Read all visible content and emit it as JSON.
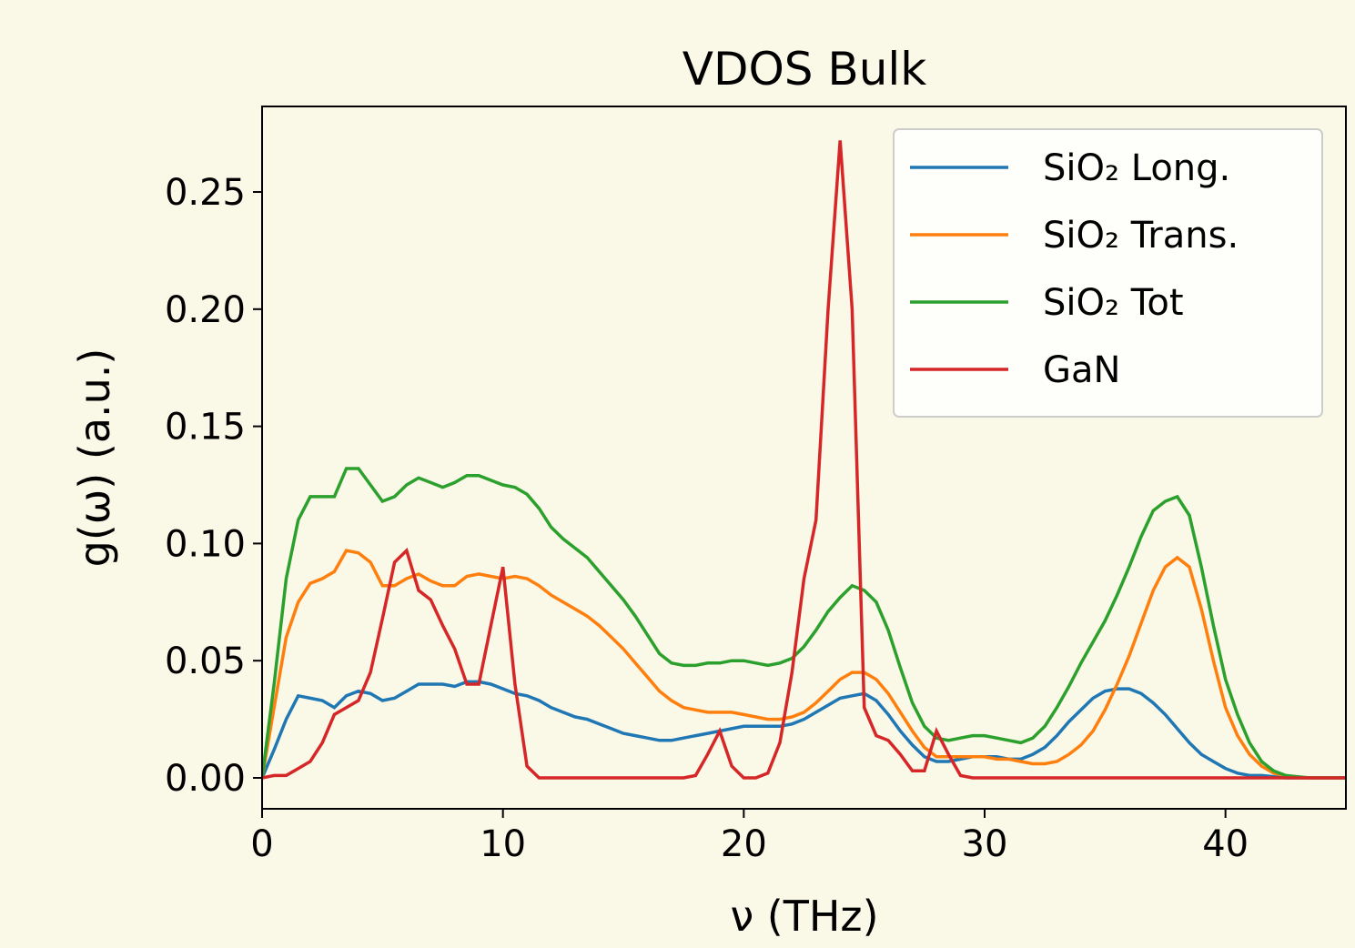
{
  "chart_data": {
    "type": "line",
    "title": "VDOS Bulk",
    "xlabel": "ν (THz)",
    "ylabel": "g(ω) (a.u.)",
    "x": [
      0,
      0.5,
      1,
      1.5,
      2,
      2.5,
      3,
      3.5,
      4,
      4.5,
      5,
      5.5,
      6,
      6.5,
      7,
      7.5,
      8,
      8.5,
      9,
      9.5,
      10,
      10.5,
      11,
      11.5,
      12,
      12.5,
      13,
      13.5,
      14,
      14.5,
      15,
      15.5,
      16,
      16.5,
      17,
      17.5,
      18,
      18.5,
      19,
      19.5,
      20,
      20.5,
      21,
      21.5,
      22,
      22.5,
      23,
      23.5,
      24,
      24.5,
      25,
      25.5,
      26,
      26.5,
      27,
      27.5,
      28,
      28.5,
      29,
      29.5,
      30,
      30.5,
      31,
      31.5,
      32,
      32.5,
      33,
      33.5,
      34,
      34.5,
      35,
      35.5,
      36,
      36.5,
      37,
      37.5,
      38,
      38.5,
      39,
      39.5,
      40,
      40.5,
      41,
      41.5,
      42,
      42.5,
      43,
      43.5,
      44,
      44.5,
      45
    ],
    "series": [
      {
        "name": "SiO₂ Long.",
        "color": "#1f77b4",
        "values": [
          0,
          0.012,
          0.025,
          0.035,
          0.034,
          0.033,
          0.03,
          0.035,
          0.037,
          0.036,
          0.033,
          0.034,
          0.037,
          0.04,
          0.04,
          0.04,
          0.039,
          0.041,
          0.041,
          0.04,
          0.038,
          0.036,
          0.035,
          0.033,
          0.03,
          0.028,
          0.026,
          0.025,
          0.023,
          0.021,
          0.019,
          0.018,
          0.017,
          0.016,
          0.016,
          0.017,
          0.018,
          0.019,
          0.02,
          0.021,
          0.022,
          0.022,
          0.022,
          0.022,
          0.023,
          0.025,
          0.028,
          0.031,
          0.034,
          0.035,
          0.036,
          0.033,
          0.027,
          0.02,
          0.014,
          0.009,
          0.007,
          0.007,
          0.008,
          0.009,
          0.009,
          0.009,
          0.008,
          0.008,
          0.01,
          0.013,
          0.018,
          0.024,
          0.029,
          0.034,
          0.037,
          0.038,
          0.038,
          0.036,
          0.032,
          0.027,
          0.021,
          0.015,
          0.01,
          0.007,
          0.004,
          0.002,
          0.001,
          0.001,
          0.0005,
          0,
          0,
          0,
          0,
          0,
          0
        ]
      },
      {
        "name": "SiO₂ Trans.",
        "color": "#ff7f0e",
        "values": [
          0,
          0.03,
          0.06,
          0.075,
          0.083,
          0.085,
          0.088,
          0.097,
          0.096,
          0.092,
          0.082,
          0.082,
          0.085,
          0.087,
          0.084,
          0.082,
          0.082,
          0.086,
          0.087,
          0.086,
          0.085,
          0.086,
          0.085,
          0.082,
          0.078,
          0.075,
          0.072,
          0.069,
          0.065,
          0.06,
          0.055,
          0.049,
          0.043,
          0.037,
          0.033,
          0.03,
          0.029,
          0.028,
          0.028,
          0.028,
          0.027,
          0.026,
          0.025,
          0.025,
          0.026,
          0.028,
          0.032,
          0.037,
          0.042,
          0.045,
          0.045,
          0.042,
          0.036,
          0.028,
          0.02,
          0.013,
          0.009,
          0.009,
          0.009,
          0.009,
          0.009,
          0.008,
          0.008,
          0.007,
          0.006,
          0.006,
          0.007,
          0.01,
          0.014,
          0.02,
          0.029,
          0.04,
          0.052,
          0.066,
          0.08,
          0.09,
          0.094,
          0.09,
          0.072,
          0.05,
          0.03,
          0.018,
          0.01,
          0.005,
          0.002,
          0.001,
          0,
          0,
          0,
          0,
          0
        ]
      },
      {
        "name": "SiO₂ Tot",
        "color": "#2ca02c",
        "values": [
          0,
          0.04,
          0.085,
          0.11,
          0.12,
          0.12,
          0.12,
          0.132,
          0.132,
          0.125,
          0.118,
          0.12,
          0.125,
          0.128,
          0.126,
          0.124,
          0.126,
          0.129,
          0.129,
          0.127,
          0.125,
          0.124,
          0.121,
          0.115,
          0.107,
          0.102,
          0.098,
          0.094,
          0.088,
          0.082,
          0.076,
          0.069,
          0.061,
          0.053,
          0.049,
          0.048,
          0.048,
          0.049,
          0.049,
          0.05,
          0.05,
          0.049,
          0.048,
          0.049,
          0.051,
          0.056,
          0.063,
          0.071,
          0.077,
          0.082,
          0.08,
          0.075,
          0.063,
          0.047,
          0.032,
          0.022,
          0.017,
          0.016,
          0.017,
          0.018,
          0.018,
          0.017,
          0.016,
          0.015,
          0.017,
          0.022,
          0.03,
          0.039,
          0.049,
          0.058,
          0.067,
          0.078,
          0.09,
          0.103,
          0.114,
          0.118,
          0.12,
          0.112,
          0.09,
          0.065,
          0.042,
          0.027,
          0.015,
          0.007,
          0.003,
          0.001,
          0.0005,
          0,
          0,
          0,
          0
        ]
      },
      {
        "name": "GaN",
        "color": "#d62728",
        "values": [
          0,
          0.001,
          0.001,
          0.004,
          0.007,
          0.015,
          0.027,
          0.03,
          0.033,
          0.045,
          0.068,
          0.092,
          0.097,
          0.08,
          0.076,
          0.065,
          0.055,
          0.04,
          0.04,
          0.065,
          0.09,
          0.04,
          0.005,
          0,
          0,
          0,
          0,
          0,
          0,
          0,
          0,
          0,
          0,
          0,
          0,
          0,
          0.001,
          0.01,
          0.02,
          0.005,
          0,
          0,
          0.002,
          0.015,
          0.045,
          0.085,
          0.11,
          0.2,
          0.272,
          0.2,
          0.03,
          0.018,
          0.016,
          0.01,
          0.003,
          0.003,
          0.02,
          0.01,
          0.001,
          0,
          0,
          0,
          0,
          0,
          0,
          0,
          0,
          0,
          0,
          0,
          0,
          0,
          0,
          0,
          0,
          0,
          0,
          0,
          0,
          0,
          0,
          0,
          0,
          0,
          0,
          0,
          0,
          0,
          0,
          0,
          0
        ]
      }
    ],
    "xlim": [
      0,
      45
    ],
    "ylim": [
      -0.0132,
      0.2865
    ],
    "xticks": [
      0,
      10,
      20,
      30,
      40
    ],
    "yticks": [
      {
        "value": 0,
        "label": "0.00"
      },
      0.05,
      {
        "value": 0.1,
        "label": "0.10"
      },
      0.15,
      {
        "value": 0.2,
        "label": "0.20"
      },
      0.25
    ],
    "legend": "upper right"
  }
}
